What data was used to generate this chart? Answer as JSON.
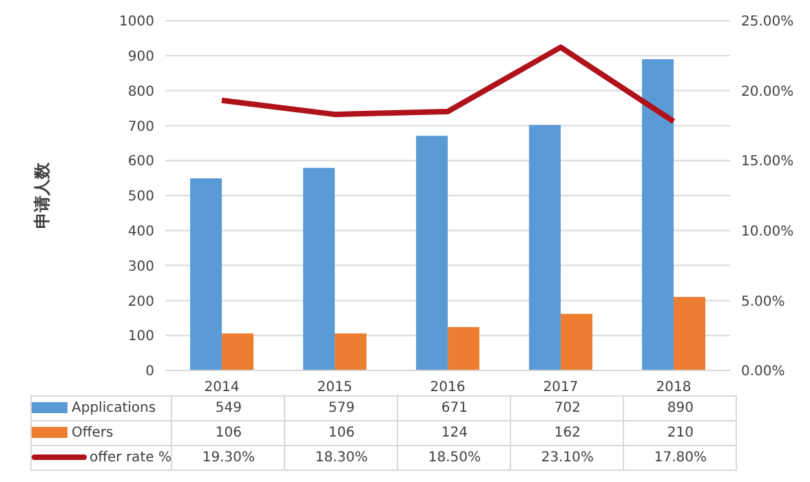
{
  "chart_data": {
    "type": "bar",
    "ylabel": "申请人数",
    "categories": [
      "2014",
      "2015",
      "2016",
      "2017",
      "2018"
    ],
    "series": [
      {
        "name": "Applications",
        "color": "#5b9bd5",
        "values": [
          549,
          579,
          671,
          702,
          890
        ],
        "value_labels": [
          "549",
          "579",
          "671",
          "702",
          "890"
        ]
      },
      {
        "name": "Offers",
        "color": "#ed7d31",
        "values": [
          106,
          106,
          124,
          162,
          210
        ],
        "value_labels": [
          "106",
          "106",
          "124",
          "162",
          "210"
        ]
      },
      {
        "name": "offer rate %",
        "type": "line",
        "axis": "y2",
        "color": "#b0121b",
        "values": [
          19.3,
          18.3,
          18.5,
          23.1,
          17.8
        ],
        "value_labels": [
          "19.30%",
          "18.30%",
          "18.50%",
          "23.10%",
          "17.80%"
        ]
      }
    ],
    "ylim": [
      0,
      1000
    ],
    "yticks": [
      0,
      100,
      200,
      300,
      400,
      500,
      600,
      700,
      800,
      900,
      1000
    ],
    "y2lim": [
      0,
      25
    ],
    "y2ticks": [
      {
        "value": 0,
        "label": "0.00%"
      },
      {
        "value": 5,
        "label": "5.00%"
      },
      {
        "value": 10,
        "label": "10.00%"
      },
      {
        "value": 15,
        "label": "15.00%"
      },
      {
        "value": 20,
        "label": "20.00%"
      },
      {
        "value": 25,
        "label": "25.00%"
      }
    ],
    "grid": "y",
    "legend": "bottom",
    "marker": "none"
  }
}
